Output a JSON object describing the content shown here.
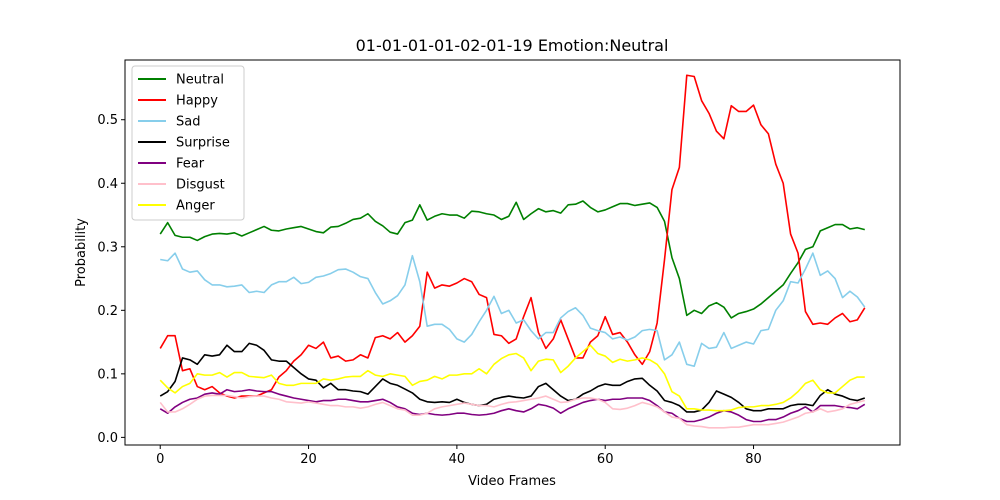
{
  "chart_data": {
    "type": "line",
    "title": "01-01-01-01-02-01-19 Emotion:Neutral",
    "xlabel": "Video Frames",
    "ylabel": "Probability",
    "xlim": [
      -4.75,
      99.75
    ],
    "ylim": [
      -0.012,
      0.594
    ],
    "xticks": [
      0,
      20,
      40,
      60,
      80
    ],
    "yticks": [
      0.0,
      0.1,
      0.2,
      0.3,
      0.4,
      0.5
    ],
    "xtick_labels": [
      "0",
      "20",
      "40",
      "60",
      "80"
    ],
    "ytick_labels": [
      "0.0",
      "0.1",
      "0.2",
      "0.3",
      "0.4",
      "0.5"
    ],
    "grid": false,
    "legend_position": "top-left",
    "x": [
      0,
      1,
      2,
      3,
      4,
      5,
      6,
      7,
      8,
      9,
      10,
      11,
      12,
      13,
      14,
      15,
      16,
      17,
      18,
      19,
      20,
      21,
      22,
      23,
      24,
      25,
      26,
      27,
      28,
      29,
      30,
      31,
      32,
      33,
      34,
      35,
      36,
      37,
      38,
      39,
      40,
      41,
      42,
      43,
      44,
      45,
      46,
      47,
      48,
      49,
      50,
      51,
      52,
      53,
      54,
      55,
      56,
      57,
      58,
      59,
      60,
      61,
      62,
      63,
      64,
      65,
      66,
      67,
      68,
      69,
      70,
      71,
      72,
      73,
      74,
      75,
      76,
      77,
      78,
      79,
      80,
      81,
      82,
      83,
      84,
      85,
      86,
      87,
      88,
      89,
      90,
      91,
      92,
      93,
      94,
      95
    ],
    "series": [
      {
        "name": "Neutral",
        "color": "#008000",
        "values": [
          0.32,
          0.338,
          0.318,
          0.315,
          0.315,
          0.31,
          0.316,
          0.32,
          0.321,
          0.32,
          0.322,
          0.317,
          0.322,
          0.327,
          0.332,
          0.326,
          0.325,
          0.328,
          0.33,
          0.332,
          0.328,
          0.324,
          0.322,
          0.331,
          0.332,
          0.337,
          0.343,
          0.345,
          0.352,
          0.34,
          0.333,
          0.323,
          0.32,
          0.338,
          0.342,
          0.366,
          0.342,
          0.348,
          0.352,
          0.35,
          0.35,
          0.345,
          0.356,
          0.355,
          0.352,
          0.35,
          0.343,
          0.348,
          0.37,
          0.343,
          0.352,
          0.36,
          0.355,
          0.357,
          0.353,
          0.366,
          0.367,
          0.372,
          0.362,
          0.355,
          0.358,
          0.363,
          0.368,
          0.368,
          0.365,
          0.367,
          0.369,
          0.362,
          0.34,
          0.283,
          0.25,
          0.192,
          0.2,
          0.195,
          0.207,
          0.212,
          0.205,
          0.188,
          0.195,
          0.198,
          0.202,
          0.21,
          0.22,
          0.23,
          0.24,
          0.258,
          0.275,
          0.296,
          0.3,
          0.325,
          0.33,
          0.335,
          0.335,
          0.328,
          0.33,
          0.327
        ]
      },
      {
        "name": "Happy",
        "color": "#ff0000",
        "values": [
          0.14,
          0.16,
          0.16,
          0.105,
          0.108,
          0.08,
          0.075,
          0.08,
          0.07,
          0.065,
          0.062,
          0.065,
          0.065,
          0.065,
          0.07,
          0.075,
          0.095,
          0.105,
          0.12,
          0.13,
          0.145,
          0.14,
          0.15,
          0.125,
          0.128,
          0.12,
          0.122,
          0.13,
          0.125,
          0.157,
          0.16,
          0.155,
          0.165,
          0.15,
          0.16,
          0.175,
          0.26,
          0.235,
          0.24,
          0.238,
          0.243,
          0.25,
          0.245,
          0.225,
          0.22,
          0.162,
          0.16,
          0.148,
          0.155,
          0.19,
          0.22,
          0.165,
          0.14,
          0.155,
          0.185,
          0.155,
          0.125,
          0.125,
          0.15,
          0.16,
          0.19,
          0.162,
          0.165,
          0.15,
          0.13,
          0.115,
          0.135,
          0.18,
          0.28,
          0.39,
          0.425,
          0.57,
          0.568,
          0.53,
          0.51,
          0.482,
          0.47,
          0.522,
          0.513,
          0.513,
          0.523,
          0.492,
          0.478,
          0.43,
          0.4,
          0.32,
          0.29,
          0.198,
          0.178,
          0.18,
          0.178,
          0.188,
          0.195,
          0.182,
          0.185,
          0.204
        ]
      },
      {
        "name": "Sad",
        "color": "#87ceeb",
        "values": [
          0.28,
          0.278,
          0.29,
          0.265,
          0.26,
          0.262,
          0.248,
          0.24,
          0.24,
          0.237,
          0.238,
          0.24,
          0.228,
          0.23,
          0.228,
          0.24,
          0.245,
          0.245,
          0.252,
          0.242,
          0.244,
          0.252,
          0.254,
          0.258,
          0.264,
          0.265,
          0.26,
          0.253,
          0.25,
          0.228,
          0.21,
          0.215,
          0.223,
          0.24,
          0.286,
          0.245,
          0.175,
          0.178,
          0.178,
          0.17,
          0.155,
          0.15,
          0.162,
          0.182,
          0.2,
          0.222,
          0.195,
          0.2,
          0.18,
          0.185,
          0.168,
          0.155,
          0.165,
          0.165,
          0.188,
          0.198,
          0.204,
          0.192,
          0.172,
          0.168,
          0.165,
          0.155,
          0.158,
          0.153,
          0.158,
          0.168,
          0.17,
          0.168,
          0.122,
          0.13,
          0.15,
          0.115,
          0.112,
          0.148,
          0.14,
          0.142,
          0.165,
          0.14,
          0.145,
          0.15,
          0.147,
          0.168,
          0.17,
          0.2,
          0.215,
          0.245,
          0.243,
          0.265,
          0.29,
          0.255,
          0.262,
          0.25,
          0.22,
          0.23,
          0.221,
          0.205
        ]
      },
      {
        "name": "Surprise",
        "color": "#000000",
        "values": [
          0.065,
          0.072,
          0.088,
          0.125,
          0.122,
          0.115,
          0.13,
          0.128,
          0.13,
          0.145,
          0.135,
          0.135,
          0.148,
          0.145,
          0.137,
          0.122,
          0.12,
          0.12,
          0.11,
          0.1,
          0.092,
          0.09,
          0.078,
          0.085,
          0.075,
          0.075,
          0.073,
          0.072,
          0.068,
          0.08,
          0.092,
          0.085,
          0.082,
          0.076,
          0.07,
          0.06,
          0.056,
          0.055,
          0.056,
          0.055,
          0.06,
          0.055,
          0.052,
          0.05,
          0.052,
          0.06,
          0.063,
          0.065,
          0.063,
          0.062,
          0.065,
          0.08,
          0.085,
          0.075,
          0.065,
          0.058,
          0.06,
          0.068,
          0.073,
          0.08,
          0.084,
          0.082,
          0.082,
          0.088,
          0.092,
          0.093,
          0.082,
          0.073,
          0.058,
          0.055,
          0.05,
          0.04,
          0.04,
          0.043,
          0.055,
          0.073,
          0.068,
          0.063,
          0.055,
          0.045,
          0.042,
          0.042,
          0.045,
          0.045,
          0.045,
          0.05,
          0.052,
          0.052,
          0.05,
          0.066,
          0.075,
          0.068,
          0.065,
          0.06,
          0.058,
          0.062
        ]
      },
      {
        "name": "Fear",
        "color": "#800080",
        "values": [
          0.045,
          0.038,
          0.048,
          0.055,
          0.06,
          0.062,
          0.068,
          0.07,
          0.068,
          0.075,
          0.072,
          0.073,
          0.075,
          0.073,
          0.072,
          0.072,
          0.068,
          0.065,
          0.062,
          0.06,
          0.058,
          0.056,
          0.058,
          0.058,
          0.06,
          0.06,
          0.058,
          0.056,
          0.056,
          0.058,
          0.06,
          0.055,
          0.048,
          0.045,
          0.038,
          0.036,
          0.038,
          0.036,
          0.035,
          0.036,
          0.038,
          0.038,
          0.036,
          0.035,
          0.036,
          0.038,
          0.042,
          0.045,
          0.042,
          0.04,
          0.045,
          0.052,
          0.05,
          0.046,
          0.038,
          0.045,
          0.05,
          0.055,
          0.058,
          0.06,
          0.058,
          0.06,
          0.06,
          0.062,
          0.062,
          0.062,
          0.058,
          0.05,
          0.04,
          0.038,
          0.03,
          0.025,
          0.025,
          0.028,
          0.032,
          0.038,
          0.042,
          0.04,
          0.035,
          0.028,
          0.025,
          0.025,
          0.028,
          0.028,
          0.032,
          0.038,
          0.042,
          0.048,
          0.04,
          0.05,
          0.05,
          0.05,
          0.048,
          0.047,
          0.045,
          0.052
        ]
      },
      {
        "name": "Disgust",
        "color": "#ffc0cb",
        "values": [
          0.055,
          0.04,
          0.04,
          0.045,
          0.052,
          0.06,
          0.065,
          0.066,
          0.066,
          0.066,
          0.064,
          0.062,
          0.064,
          0.065,
          0.065,
          0.062,
          0.06,
          0.056,
          0.055,
          0.054,
          0.056,
          0.054,
          0.052,
          0.05,
          0.05,
          0.048,
          0.048,
          0.046,
          0.048,
          0.052,
          0.055,
          0.05,
          0.045,
          0.043,
          0.035,
          0.035,
          0.038,
          0.045,
          0.048,
          0.05,
          0.052,
          0.054,
          0.052,
          0.05,
          0.05,
          0.048,
          0.052,
          0.055,
          0.056,
          0.058,
          0.06,
          0.062,
          0.065,
          0.06,
          0.055,
          0.056,
          0.06,
          0.062,
          0.062,
          0.06,
          0.055,
          0.045,
          0.044,
          0.046,
          0.05,
          0.055,
          0.052,
          0.048,
          0.04,
          0.032,
          0.03,
          0.02,
          0.018,
          0.017,
          0.015,
          0.015,
          0.015,
          0.016,
          0.016,
          0.018,
          0.02,
          0.02,
          0.02,
          0.022,
          0.024,
          0.028,
          0.032,
          0.038,
          0.04,
          0.045,
          0.04,
          0.042,
          0.045,
          0.052,
          0.055,
          0.058
        ]
      },
      {
        "name": "Anger",
        "color": "#ffff00",
        "values": [
          0.09,
          0.078,
          0.07,
          0.08,
          0.085,
          0.1,
          0.098,
          0.098,
          0.102,
          0.095,
          0.102,
          0.102,
          0.096,
          0.095,
          0.094,
          0.098,
          0.085,
          0.082,
          0.082,
          0.085,
          0.085,
          0.085,
          0.092,
          0.09,
          0.092,
          0.095,
          0.096,
          0.096,
          0.105,
          0.098,
          0.096,
          0.1,
          0.098,
          0.096,
          0.082,
          0.088,
          0.09,
          0.096,
          0.092,
          0.098,
          0.098,
          0.1,
          0.1,
          0.108,
          0.1,
          0.115,
          0.124,
          0.13,
          0.132,
          0.125,
          0.105,
          0.12,
          0.123,
          0.122,
          0.102,
          0.112,
          0.125,
          0.135,
          0.145,
          0.132,
          0.128,
          0.118,
          0.123,
          0.12,
          0.122,
          0.125,
          0.122,
          0.115,
          0.1,
          0.072,
          0.065,
          0.045,
          0.045,
          0.043,
          0.043,
          0.042,
          0.042,
          0.043,
          0.047,
          0.048,
          0.048,
          0.05,
          0.05,
          0.052,
          0.055,
          0.062,
          0.072,
          0.085,
          0.09,
          0.075,
          0.07,
          0.07,
          0.08,
          0.09,
          0.095,
          0.095
        ]
      }
    ]
  }
}
